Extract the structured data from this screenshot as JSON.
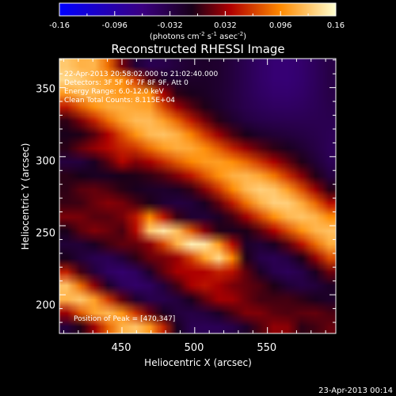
{
  "chart_data": {
    "type": "heatmap",
    "title": "Reconstructed RHESSI Image",
    "xlabel": "Heliocentric X (arcsec)",
    "ylabel": "Heliocentric Y (arcsec)",
    "xlim": [
      407,
      597
    ],
    "ylim": [
      172,
      371
    ],
    "xticks": [
      450,
      500,
      550
    ],
    "yticks": [
      200,
      250,
      300,
      350
    ],
    "colorbar": {
      "ticks": [
        "-0.16",
        "-0.096",
        "-0.032",
        "0.032",
        "0.096",
        "0.16"
      ],
      "label": "(photons cm",
      "label_sup1": "-2",
      "label_mid": " s",
      "label_sup2": "-1",
      "label_end": " asec",
      "label_sup3": "-2",
      "label_close": ")",
      "range": [
        -0.16,
        0.16
      ]
    },
    "annotations": [
      "22-Apr-2013 20:58:02.000 to 21:02:40.000",
      "Detectors: 3F 5F 6F 7F 8F 9F, Att 0",
      "Energy Range: 6.0-12.0 keV",
      "Clean    Total Counts: 8.115E+04"
    ],
    "peak_label": "Position of Peak = [470,347]",
    "peak": [
      470,
      347
    ],
    "features": [
      {
        "x0": 410,
        "y0": 360,
        "x1": 600,
        "y1": 240,
        "amp": 0.16,
        "width": 16
      },
      {
        "x0": 407,
        "y0": 285,
        "x1": 600,
        "y1": 175,
        "amp": 0.055,
        "width": 9
      },
      {
        "x0": 407,
        "y0": 260,
        "x1": 560,
        "y1": 175,
        "amp": 0.06,
        "width": 7
      },
      {
        "x0": 470,
        "y0": 250,
        "x1": 520,
        "y1": 230,
        "amp": 0.13,
        "width": 7
      },
      {
        "x0": 407,
        "y0": 205,
        "x1": 470,
        "y1": 170,
        "amp": 0.16,
        "width": 10
      },
      {
        "x0": 410,
        "y0": 310,
        "x1": 450,
        "y1": 300,
        "amp": 0.05,
        "width": 5
      },
      {
        "x0": 430,
        "y0": 370,
        "x1": 470,
        "y1": 345,
        "amp": 0.07,
        "width": 6
      }
    ]
  },
  "footer": {
    "timestamp": "23-Apr-2013 00:14"
  }
}
